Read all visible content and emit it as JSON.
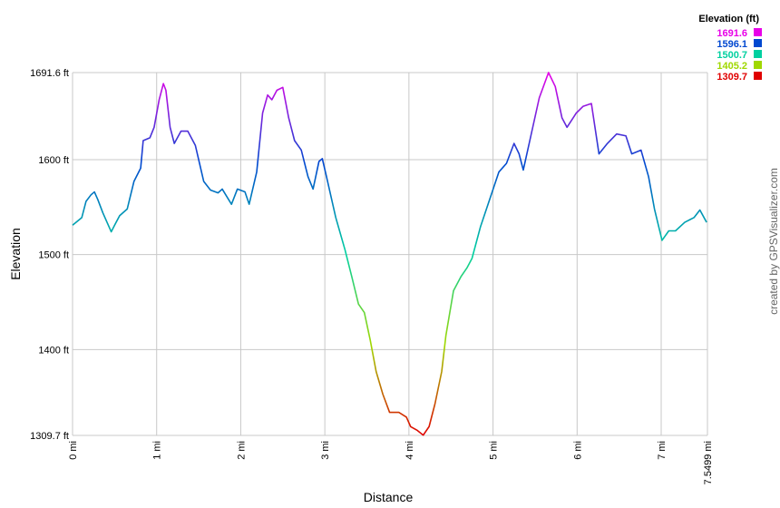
{
  "chart_data": {
    "type": "line",
    "x_label": "Distance",
    "y_label": "Elevation",
    "credit": "created by GPSVisualizer.com",
    "legend_title": "Elevation (ft)",
    "color_scale": [
      {
        "value": 1691.6,
        "color": "#e800e8"
      },
      {
        "value": 1596.1,
        "color": "#0048d0"
      },
      {
        "value": 1500.7,
        "color": "#00d0a0"
      },
      {
        "value": 1405.2,
        "color": "#a0d800"
      },
      {
        "value": 1309.7,
        "color": "#e00000"
      }
    ],
    "grid": true,
    "xlim": [
      0,
      7.5499
    ],
    "ylim": [
      1309.7,
      1691.6
    ],
    "xticks": [
      {
        "value": 0,
        "label": "0 mi"
      },
      {
        "value": 1,
        "label": "1 mi"
      },
      {
        "value": 2,
        "label": "2 mi"
      },
      {
        "value": 3,
        "label": "3 mi"
      },
      {
        "value": 4,
        "label": "4 mi"
      },
      {
        "value": 5,
        "label": "5 mi"
      },
      {
        "value": 6,
        "label": "6 mi"
      },
      {
        "value": 7,
        "label": "7 mi"
      },
      {
        "value": 7.5499,
        "label": "7.5499 mi"
      }
    ],
    "yticks": [
      {
        "value": 1309.7,
        "label": "1309.7 ft"
      },
      {
        "value": 1400,
        "label": "1400 ft"
      },
      {
        "value": 1500,
        "label": "1500 ft"
      },
      {
        "value": 1600,
        "label": "1600 ft"
      },
      {
        "value": 1691.6,
        "label": "1691.6 ft"
      }
    ],
    "x": [
      0,
      0.11,
      0.16,
      0.22,
      0.26,
      0.3,
      0.36,
      0.41,
      0.46,
      0.5,
      0.56,
      0.65,
      0.73,
      0.81,
      0.84,
      0.92,
      0.97,
      1.03,
      1.08,
      1.11,
      1.16,
      1.21,
      1.29,
      1.37,
      1.46,
      1.51,
      1.56,
      1.64,
      1.73,
      1.78,
      1.89,
      1.96,
      2.05,
      2.1,
      2.19,
      2.26,
      2.32,
      2.37,
      2.43,
      2.5,
      2.57,
      2.64,
      2.72,
      2.8,
      2.86,
      2.93,
      2.97,
      3.02,
      3.13,
      3.24,
      3.32,
      3.4,
      3.47,
      3.54,
      3.61,
      3.69,
      3.77,
      3.88,
      3.97,
      4.02,
      4.1,
      4.17,
      4.24,
      4.31,
      4.39,
      4.44,
      4.53,
      4.62,
      4.69,
      4.75,
      4.85,
      4.96,
      5.07,
      5.16,
      5.25,
      5.31,
      5.36,
      5.45,
      5.55,
      5.66,
      5.74,
      5.82,
      5.88,
      5.99,
      6.07,
      6.17,
      6.26,
      6.36,
      6.47,
      6.58,
      6.65,
      6.76,
      6.85,
      6.92,
      7.01,
      7.09,
      7.17,
      7.28,
      7.39,
      7.46,
      7.54
    ],
    "values": [
      1531,
      1539,
      1556,
      1563,
      1566,
      1558,
      1544,
      1534,
      1524,
      1531,
      1541,
      1548,
      1577,
      1591,
      1620,
      1623,
      1634,
      1663,
      1680,
      1673,
      1634,
      1617,
      1630,
      1630,
      1615,
      1596,
      1577,
      1568,
      1565,
      1569,
      1553,
      1569,
      1566,
      1553,
      1587,
      1649,
      1668,
      1663,
      1673,
      1676,
      1644,
      1620,
      1610,
      1582,
      1569,
      1598,
      1601,
      1582,
      1539,
      1505,
      1477,
      1448,
      1439,
      1410,
      1377,
      1353,
      1334,
      1334,
      1329,
      1319,
      1315,
      1310,
      1319,
      1343,
      1377,
      1415,
      1462,
      1477,
      1486,
      1496,
      1529,
      1558,
      1587,
      1596,
      1617,
      1606,
      1589,
      1625,
      1665,
      1691.6,
      1677,
      1644,
      1634,
      1649,
      1656,
      1659,
      1606,
      1617,
      1627,
      1625,
      1606,
      1610,
      1582,
      1548,
      1515,
      1525,
      1525,
      1534,
      1539,
      1547,
      1534
    ]
  }
}
